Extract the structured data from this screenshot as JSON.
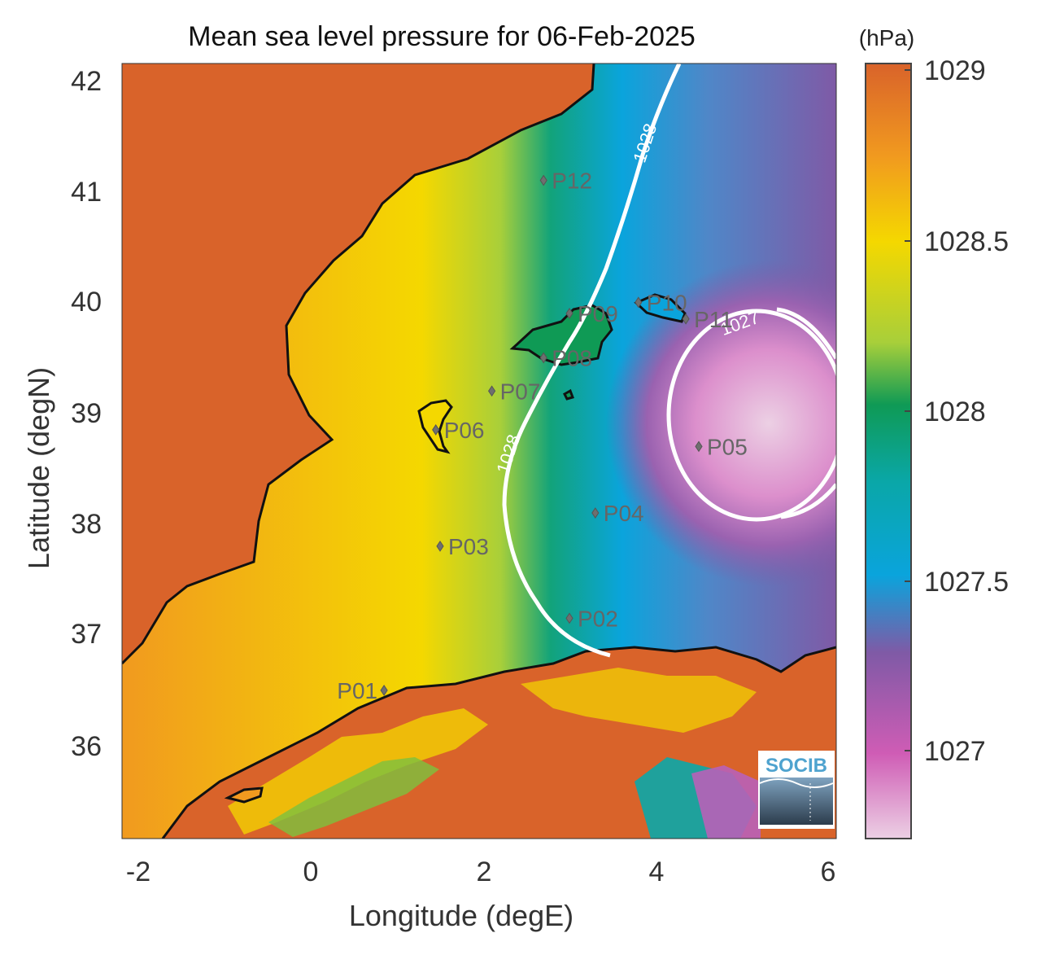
{
  "title": "Mean sea level pressure for 06-Feb-2025",
  "xlabel": "Longitude (degE)",
  "ylabel": "Latitude (degN)",
  "colorbar": {
    "unit_label": "(hPa)",
    "ticks": [
      "1029",
      "1028.5",
      "1028",
      "1027.5",
      "1027"
    ],
    "colors": [
      "#d9632a",
      "#f19a1f",
      "#f4d800",
      "#0f9a55",
      "#0aa4dc",
      "#7f5aa6",
      "#cf5cb5",
      "#ecd0e4"
    ]
  },
  "x_ticks": [
    "-2",
    "0",
    "2",
    "4",
    "6"
  ],
  "y_ticks": [
    "42",
    "41",
    "40",
    "39",
    "38",
    "37",
    "36"
  ],
  "contour_labels": [
    "1028",
    "1028",
    "1027"
  ],
  "points": [
    {
      "label": "P01",
      "lon": 0.85,
      "lat": 36.5
    },
    {
      "label": "P02",
      "lon": 3.0,
      "lat": 37.15
    },
    {
      "label": "P03",
      "lon": 1.5,
      "lat": 37.8
    },
    {
      "label": "P04",
      "lon": 3.3,
      "lat": 38.1
    },
    {
      "label": "P05",
      "lon": 4.5,
      "lat": 38.7
    },
    {
      "label": "P06",
      "lon": 1.45,
      "lat": 38.85
    },
    {
      "label": "P07",
      "lon": 2.1,
      "lat": 39.2
    },
    {
      "label": "P08",
      "lon": 2.7,
      "lat": 39.5
    },
    {
      "label": "P09",
      "lon": 3.0,
      "lat": 39.9
    },
    {
      "label": "P10",
      "lon": 3.8,
      "lat": 40.0
    },
    {
      "label": "P11",
      "lon": 4.35,
      "lat": 39.85
    },
    {
      "label": "P12",
      "lon": 2.7,
      "lat": 41.1
    }
  ],
  "logo_text": "SOCIB"
}
